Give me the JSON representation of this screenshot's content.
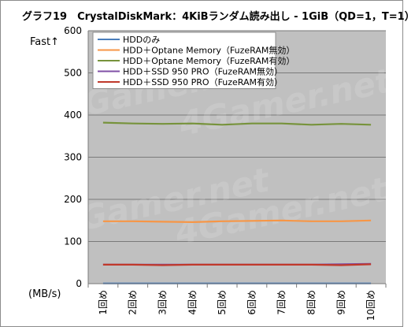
{
  "chart_data": {
    "type": "line",
    "title": "グラフ19　CrystalDiskMark：4KiBランダム読み出し - 1GiB（QD=1，T=1）",
    "y_direction_label": "Fast↑",
    "ylabel": "(MB/s)",
    "xlabel": "",
    "ylim": [
      0,
      600
    ],
    "yticks": [
      0,
      100,
      200,
      300,
      400,
      500,
      600
    ],
    "categories": [
      "1回め",
      "2回め",
      "3回め",
      "4回め",
      "5回め",
      "6回め",
      "7回め",
      "8回め",
      "9回め",
      "10回め"
    ],
    "grid": true,
    "legend_position": "top-left",
    "plot_background": "#c0c0c0",
    "watermark": "4Gamer.net",
    "series": [
      {
        "name": "HDDのみ",
        "color": "#4a7ebb",
        "values": [
          0.5,
          0.5,
          0.5,
          0.5,
          0.5,
          0.5,
          0.5,
          0.5,
          0.5,
          0.5
        ]
      },
      {
        "name": "HDD＋Optane Memory（FuzeRAM無効）",
        "color": "#f79646",
        "values": [
          148,
          148,
          147,
          146,
          148,
          149,
          150,
          148,
          148,
          150
        ]
      },
      {
        "name": "HDD＋Optane Memory（FuzeRAM有効）",
        "color": "#77933c",
        "values": [
          382,
          380,
          379,
          380,
          377,
          380,
          380,
          377,
          379,
          377
        ]
      },
      {
        "name": "HDD＋SSD 950 PRO（FuzeRAM無効）",
        "color": "#7f4fa6",
        "values": [
          45,
          45,
          45,
          45,
          45,
          45,
          45,
          45,
          46,
          47
        ]
      },
      {
        "name": "HDD＋SSD 950 PRO（FuzeRAM有効）",
        "color": "#c0392b",
        "values": [
          45,
          45,
          44,
          45,
          45,
          45,
          45,
          45,
          44,
          46
        ]
      }
    ]
  }
}
